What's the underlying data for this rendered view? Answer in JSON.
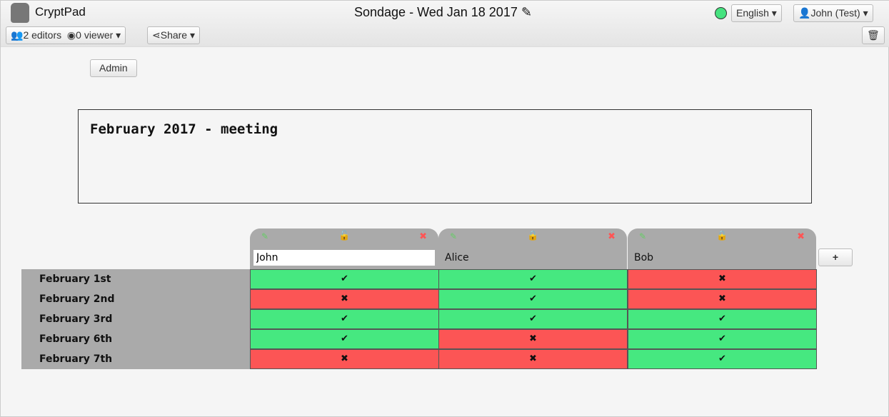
{
  "app": "CryptPad",
  "title": "Sondage - Wed Jan 18 2017",
  "toolbar": {
    "editors": "2 editors",
    "viewers": "0 viewer",
    "share": "Share",
    "language": "English",
    "user": "John (Test)"
  },
  "admin": "Admin",
  "description": "February 2017 - meeting",
  "colors": {
    "yes": "#46e880",
    "no": "#fc5555"
  },
  "columns": [
    {
      "name": "John",
      "locked": false,
      "editing": true
    },
    {
      "name": "Alice",
      "locked": true
    },
    {
      "name": "Bob",
      "locked": true
    }
  ],
  "rows": [
    {
      "label": "February 1st",
      "votes": [
        "✔",
        "✔",
        "✖"
      ]
    },
    {
      "label": "February 2nd",
      "votes": [
        "✖",
        "✔",
        "✖"
      ]
    },
    {
      "label": "February 3rd",
      "votes": [
        "✔",
        "✔",
        "✔"
      ]
    },
    {
      "label": "February 6th",
      "votes": [
        "✔",
        "✖",
        "✔"
      ]
    },
    {
      "label": "February 7th",
      "votes": [
        "✖",
        "✖",
        "✔"
      ]
    }
  ],
  "add_column": "+"
}
